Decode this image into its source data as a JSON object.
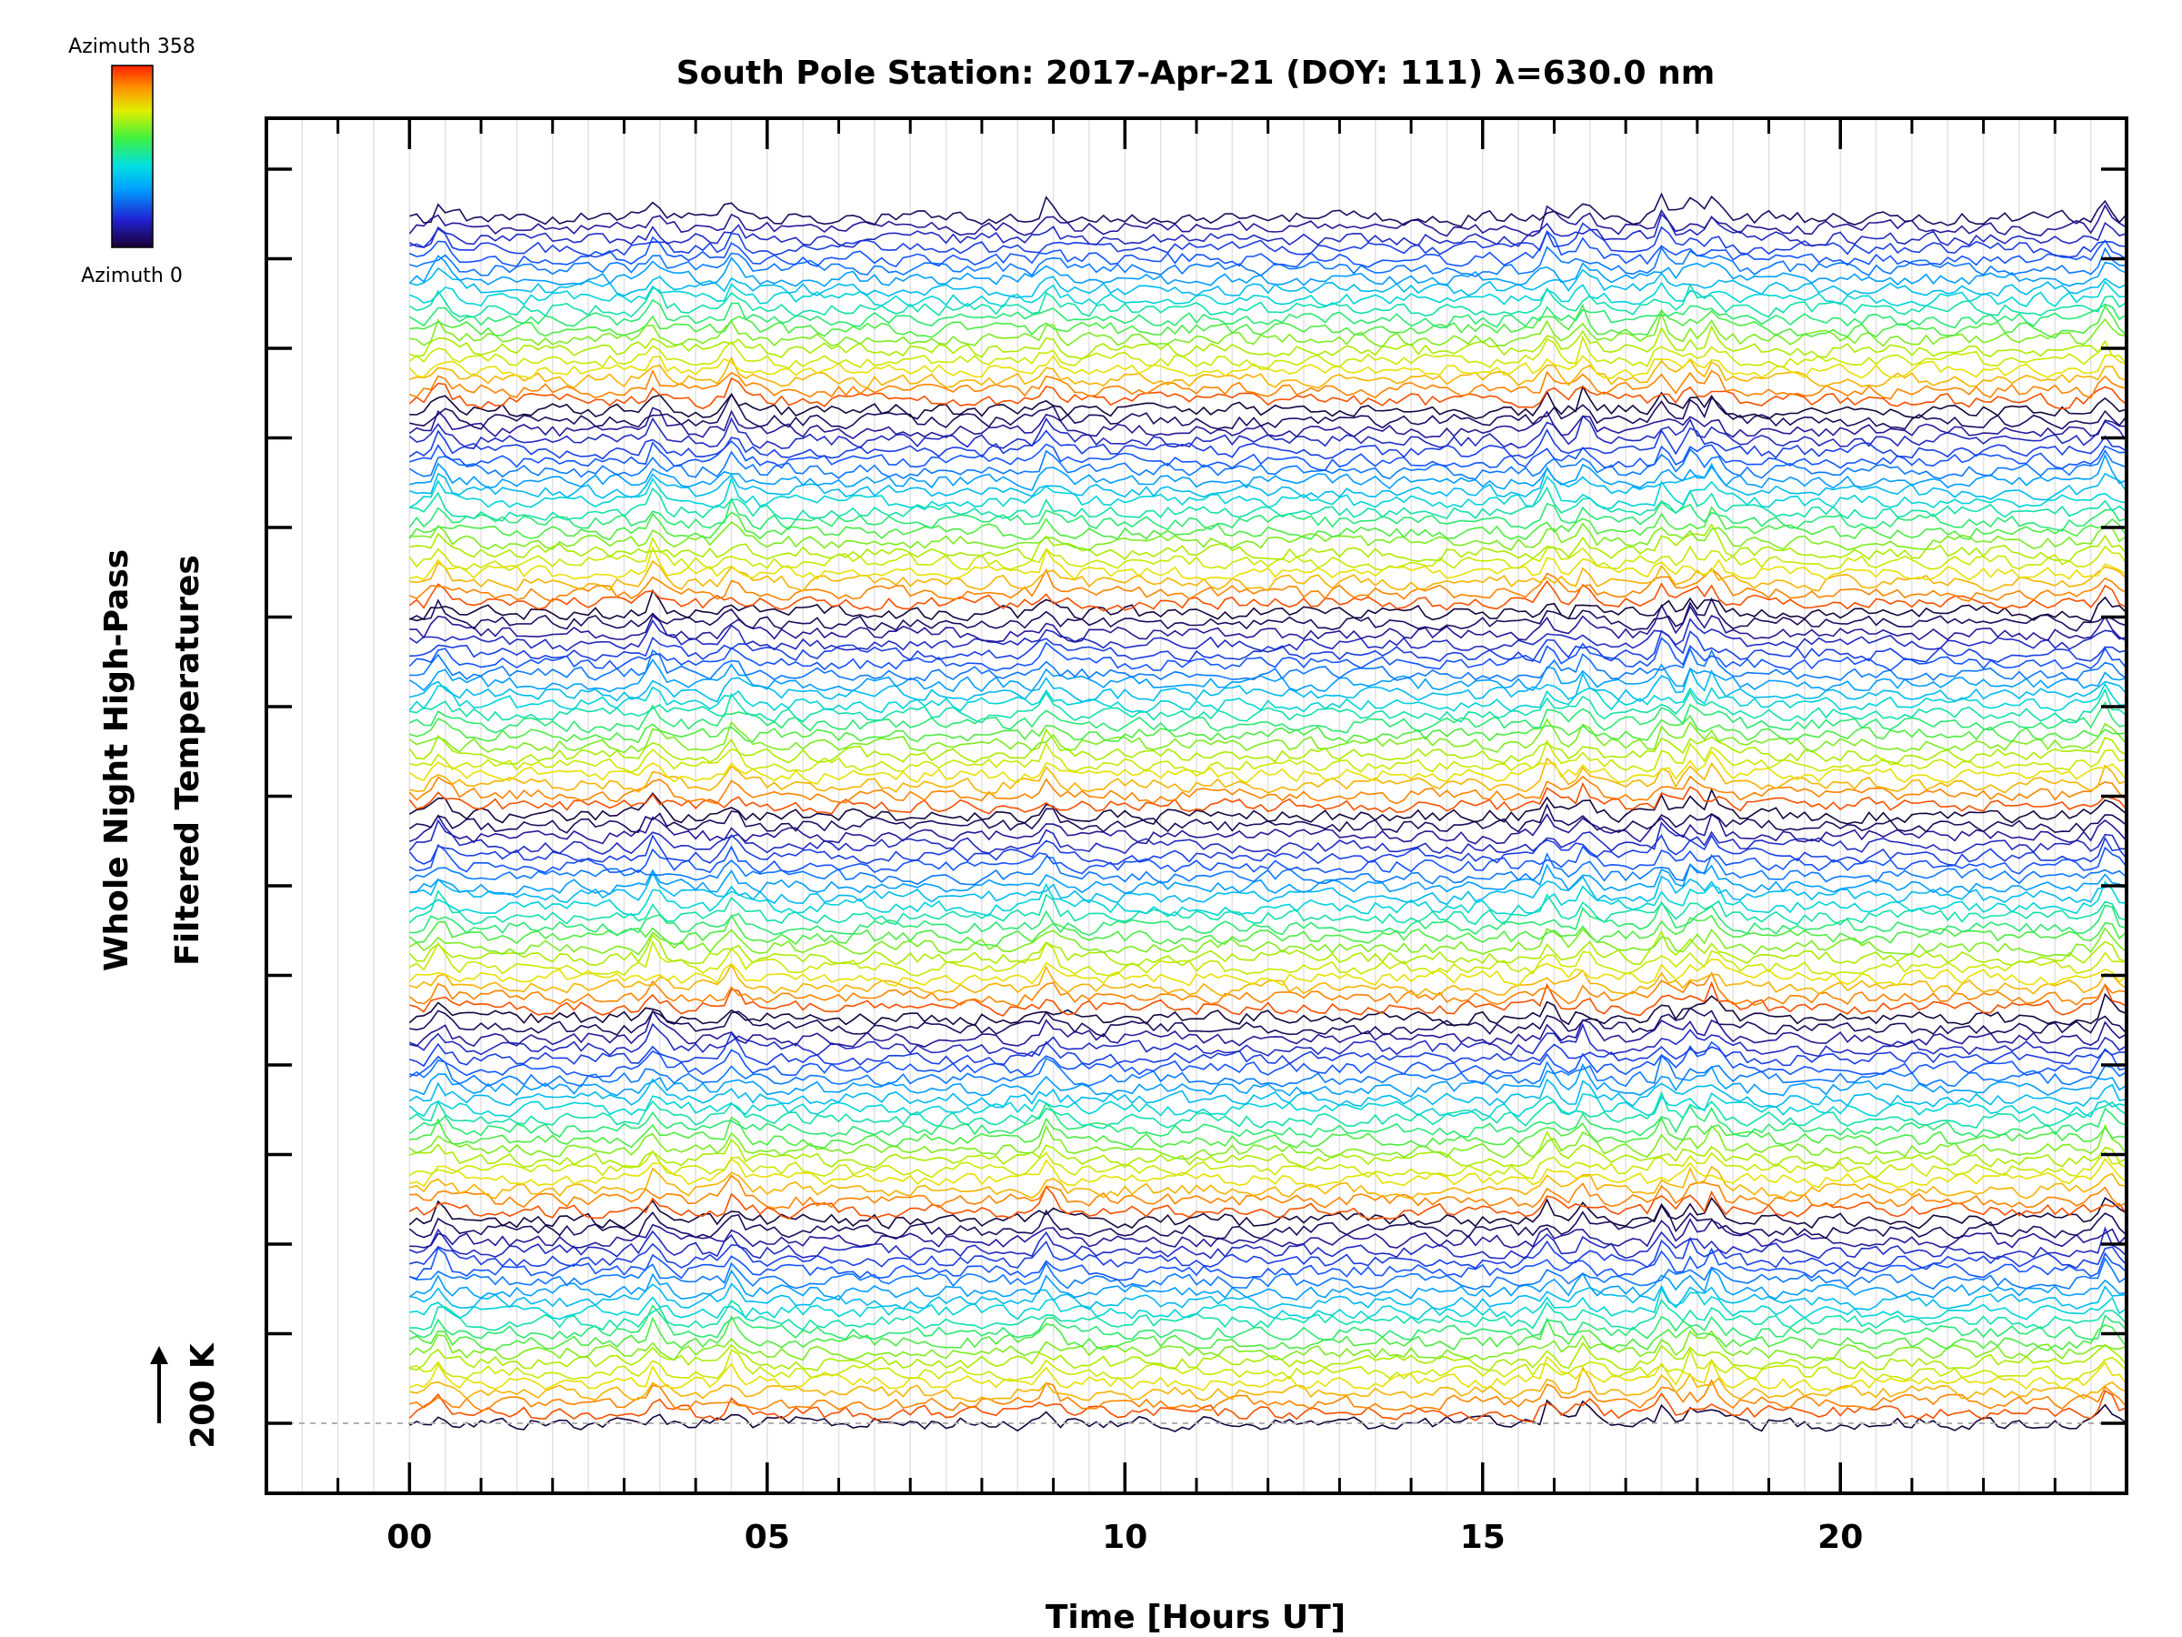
{
  "chart_data": {
    "type": "line",
    "title": "South Pole Station: 2017-Apr-21 (DOY: 111) λ=630.0 nm",
    "xlabel": "Time [Hours UT]",
    "ylabel_line1": "Whole Night High-Pass",
    "ylabel_line2": "Filtered Temperatures",
    "xlim": [
      -2,
      24
    ],
    "x_ticks": [
      0,
      5,
      10,
      15,
      20
    ],
    "x_tick_labels": [
      "00",
      "05",
      "10",
      "15",
      "20"
    ],
    "x_minor_ticks": [
      -1,
      1,
      2,
      3,
      4,
      6,
      7,
      8,
      9,
      11,
      12,
      13,
      14,
      16,
      17,
      18,
      19,
      21,
      22,
      23
    ],
    "y_ticks_count": 15,
    "data_range_hours": [
      0,
      24
    ],
    "series_count": 120,
    "series_groups": 6,
    "series_per_group": 20,
    "series_spacing_K": 200,
    "scale_bar": {
      "label": "200 K",
      "value_K": 200
    },
    "colorbar": {
      "top_label": "Azimuth  358",
      "bottom_label": "Azimuth  0",
      "min": 0,
      "max": 358,
      "colormap": "rainbow"
    },
    "baseline": "dashed",
    "grid": "vertical-lines-every-30-min"
  }
}
